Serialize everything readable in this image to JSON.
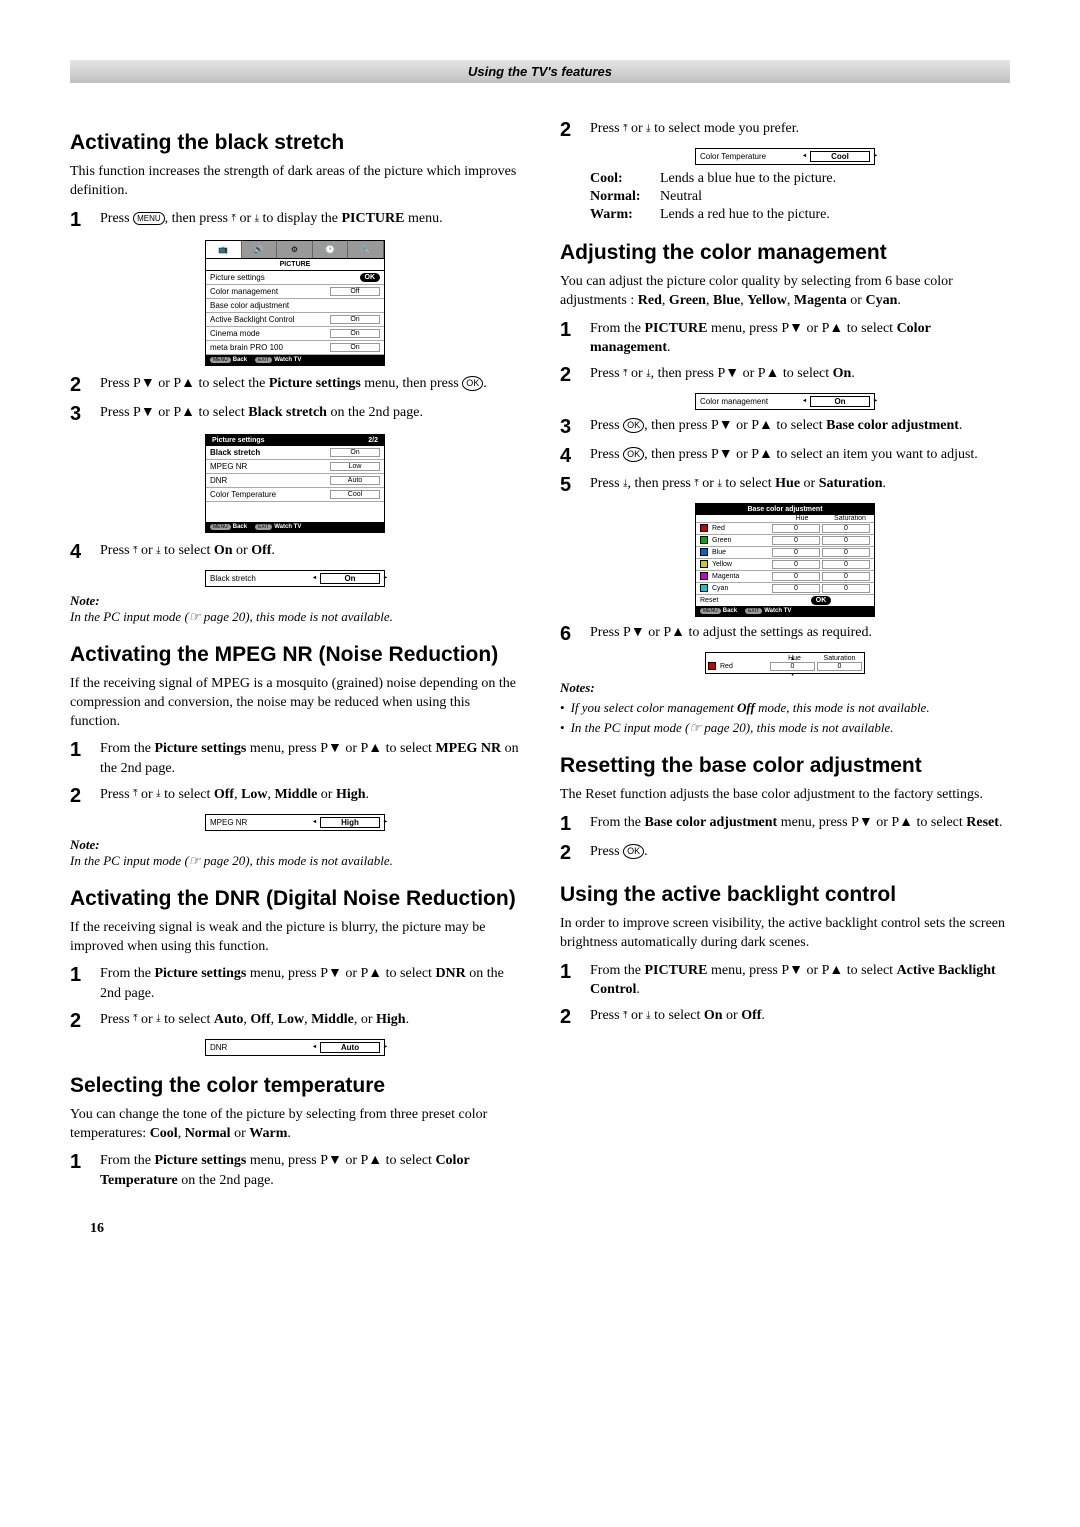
{
  "header": "Using the TV's features",
  "page_number": "16",
  "left": {
    "s1": {
      "title": "Activating the black stretch",
      "intro": "This function increases the strength of dark areas of the picture which improves definition.",
      "step1_a": "Press ",
      "step1_b": ", then press ",
      "step1_c": " or ",
      "step1_d": " to display the ",
      "step1_e": " menu.",
      "step1_menu": "MENU",
      "step1_bold": "PICTURE",
      "step2_a": "Press P▼ or P▲ to select the ",
      "step2_b": " menu, then press ",
      "step2_bold": "Picture settings",
      "step3_a": "Press P▼ or P▲ to select ",
      "step3_b": " on the 2nd page.",
      "step3_bold": "Black stretch",
      "step4_a": "Press ",
      "step4_b": " or ",
      "step4_c": " to select ",
      "step4_d": " or ",
      "step4_on": "On",
      "step4_off": "Off",
      "note_label": "Note:",
      "note_text": "In the PC input mode (☞ page 20), this mode is not available.",
      "menu1": {
        "title": "PICTURE",
        "r1k": "Picture settings",
        "r1v": "OK",
        "r2k": "Color management",
        "r2v": "Off",
        "r3k": "Base color adjustment",
        "r4k": "Active Backlight Control",
        "r4v": "On",
        "r5k": "Cinema mode",
        "r5v": "On",
        "r6k": "meta brain PRO 100",
        "r6v": "On",
        "f1": "MENU",
        "f1t": "Back",
        "f2": "EXIT",
        "f2t": "Watch TV"
      },
      "menu2": {
        "title": "Picture settings",
        "page": "2/2",
        "r1k": "Black stretch",
        "r1v": "On",
        "r2k": "MPEG NR",
        "r2v": "Low",
        "r3k": "DNR",
        "r3v": "Auto",
        "r4k": "Color Temperature",
        "r4v": "Cool",
        "f1": "MENU",
        "f1t": "Back",
        "f2": "EXIT",
        "f2t": "Watch TV"
      },
      "bar1": {
        "k": "Black stretch",
        "v": "On"
      }
    },
    "s2": {
      "title": "Activating the MPEG NR (Noise Reduction)",
      "intro": "If the receiving signal of MPEG is a mosquito (grained) noise depending on the compression and conversion, the noise may be reduced when using this function.",
      "step1_a": "From the ",
      "step1_b": " menu, press P▼ or P▲  to select ",
      "step1_c": " on the 2nd page.",
      "step1_bold1": "Picture settings",
      "step1_bold2": "MPEG NR",
      "step2_a": "Press ",
      "step2_b": " or ",
      "step2_c": " to select ",
      "step2_d": ", ",
      "step2_e": " or ",
      "step2_off": "Off",
      "step2_low": "Low",
      "step2_mid": "Middle",
      "step2_high": "High",
      "note_label": "Note:",
      "note_text": "In the PC input mode (☞ page 20), this mode is not available.",
      "bar": {
        "k": "MPEG NR",
        "v": "High"
      }
    },
    "s3": {
      "title": "Activating the DNR (Digital Noise Reduction)",
      "intro": "If the receiving signal is weak and the picture is blurry, the picture may be improved when using this function.",
      "step1_a": "From the ",
      "step1_b": " menu, press P▼ or P▲ to select ",
      "step1_c": " on the 2nd page.",
      "step1_bold1": "Picture settings",
      "step1_bold2": "DNR",
      "step2_a": "Press ",
      "step2_b": " or ",
      "step2_c": " to select ",
      "step2_d": ", ",
      "step2_e": ", or ",
      "step2_auto": "Auto",
      "step2_off": "Off",
      "step2_low": "Low",
      "step2_mid": "Middle",
      "step2_high": "High",
      "bar": {
        "k": "DNR",
        "v": "Auto"
      }
    },
    "s4": {
      "title": "Selecting the color temperature",
      "intro_a": "You can change the tone of the picture by selecting from three preset color temperatures: ",
      "intro_b": ", ",
      "intro_c": " or ",
      "intro_cool": "Cool",
      "intro_normal": "Normal",
      "intro_warm": "Warm",
      "step1_a": "From the ",
      "step1_b": " menu, press P▼ or P▲ to select ",
      "step1_c": " on the 2nd page.",
      "step1_bold1": "Picture settings",
      "step1_bold2": "Color Temperature"
    }
  },
  "right": {
    "s4b": {
      "step2_a": "Press ",
      "step2_b": " or ",
      "step2_c": " to select mode you prefer.",
      "bar": {
        "k": "Color Temperature",
        "v": "Cool"
      },
      "d1k": "Cool",
      "d1sep": ":",
      "d1v": "Lends a blue hue to the picture.",
      "d2k": "Normal",
      "d2sep": ":",
      "d2v": "Neutral",
      "d3k": "Warm",
      "d3sep": ":",
      "d3v": "Lends a red hue to the picture."
    },
    "s5": {
      "title": "Adjusting the color management",
      "intro_a": "You can adjust the picture color quality by selecting from 6 base color adjustments : ",
      "intro_b": ", ",
      "intro_c": " or ",
      "c_red": "Red",
      "c_green": "Green",
      "c_blue": "Blue",
      "c_yellow": "Yellow",
      "c_magenta": "Magenta",
      "c_cyan": "Cyan",
      "step1_a": "From the ",
      "step1_b": " menu, press P▼ or P▲ to select ",
      "step1_bold1": "PICTURE",
      "step1_bold2": "Color management",
      "step2_a": "Press ",
      "step2_b": " or ",
      "step2_c": ", then press P▼ or P▲ to select ",
      "step2_on": "On",
      "bar": {
        "k": "Color management",
        "v": "On"
      },
      "step3_a": "Press ",
      "step3_b": ", then press P▼ or P▲ to select ",
      "step3_bold": "Base color adjustment",
      "step4_a": "Press ",
      "step4_b": ", then press P▼ or P▲ to select an item you want to adjust.",
      "step5_a": "Press ",
      "step5_b": ", then press ",
      "step5_c": " or ",
      "step5_d": " to select ",
      "step5_e": " or ",
      "step5_hue": "Hue",
      "step5_sat": "Saturation",
      "btable": {
        "title": "Base color adjustment",
        "h_hue": "Hue",
        "h_sat": "Saturation",
        "rows": [
          {
            "col": "#c00",
            "name": "Red",
            "hue": "0",
            "sat": "0"
          },
          {
            "col": "#0a0",
            "name": "Green",
            "hue": "0",
            "sat": "0"
          },
          {
            "col": "#06c",
            "name": "Blue",
            "hue": "0",
            "sat": "0"
          },
          {
            "col": "#cc0",
            "name": "Yellow",
            "hue": "0",
            "sat": "0"
          },
          {
            "col": "#c0c",
            "name": "Magenta",
            "hue": "0",
            "sat": "0"
          },
          {
            "col": "#0cc",
            "name": "Cyan",
            "hue": "0",
            "sat": "0"
          }
        ],
        "reset": "Reset",
        "reset_v": "OK",
        "f1": "MENU",
        "f1t": "Back",
        "f2": "EXIT",
        "f2t": "Watch TV"
      },
      "step6": "Press P▼ or P▲ to adjust the settings as required.",
      "red_detail": {
        "h_hue": "Hue",
        "h_sat": "Saturation",
        "name": "Red",
        "hue": "0",
        "sat": "0"
      },
      "notes_label": "Notes:",
      "note1": "If you select color management Off mode, this mode is not available.",
      "note2": "In the PC input mode (☞ page 20), this mode is not available."
    },
    "s6": {
      "title": "Resetting the base color adjustment",
      "intro": "The Reset function adjusts the base color adjustment to the factory settings.",
      "step1_a": "From the ",
      "step1_b": " menu, press P▼ or P▲ to select ",
      "step1_bold1": "Base color adjustment",
      "step1_bold2": "Reset",
      "step2_a": "Press "
    },
    "s7": {
      "title": "Using the active backlight control",
      "intro": "In order to improve screen visibility, the active backlight control sets the screen brightness automatically during dark scenes.",
      "step1_a": "From the ",
      "step1_b": " menu, press P▼ or P▲ to select ",
      "step1_bold1": "PICTURE",
      "step1_bold2": "Active Backlight Control",
      "step2_a": "Press ",
      "step2_b": " or ",
      "step2_c": " to select ",
      "step2_d": " or ",
      "step2_on": "On",
      "step2_off": "Off"
    }
  }
}
